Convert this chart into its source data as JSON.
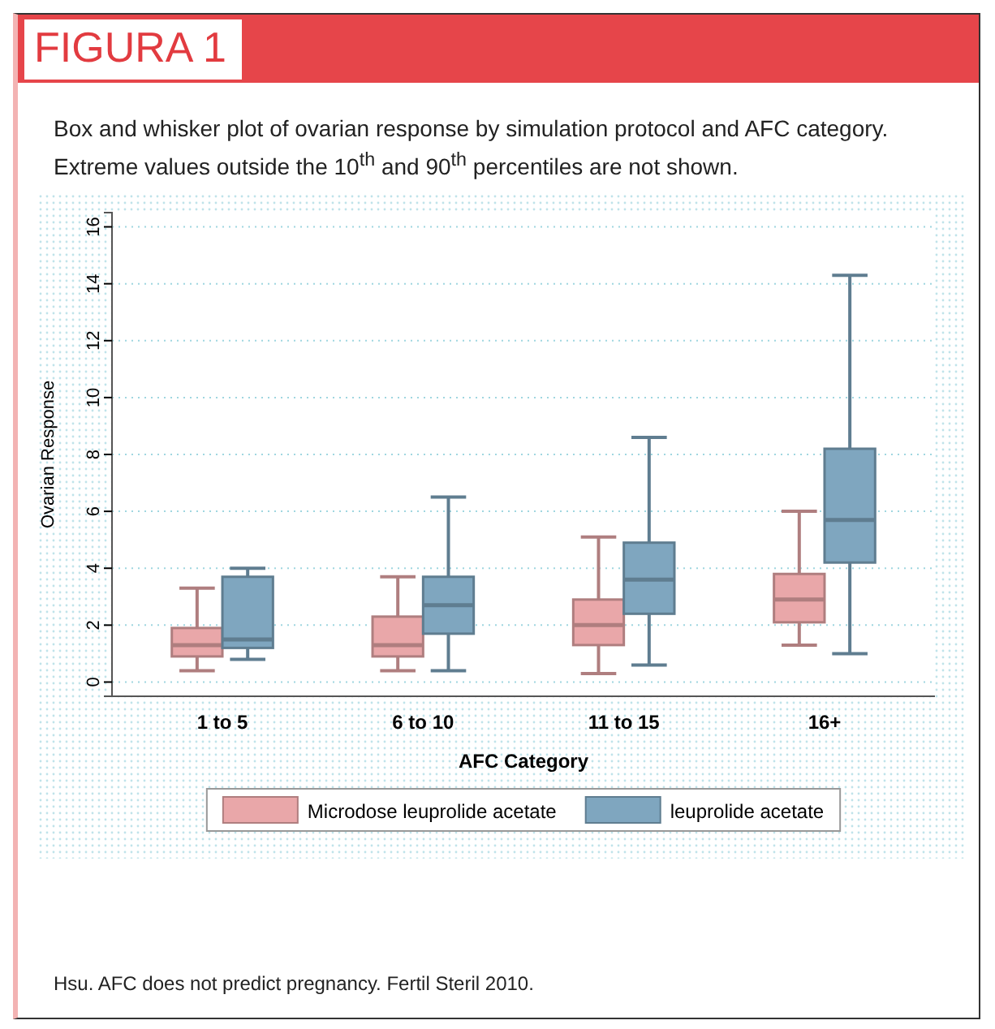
{
  "chart_data": {
    "type": "box",
    "title": "FIGURA 1",
    "subtitle": "Box and whisker plot of ovarian response by simulation protocol and AFC category. Extreme values outside the 10$^{th}$ and 90$^{th}$ percentiles are not shown.",
    "xlabel": "AFC Category",
    "ylabel": "Ovarian Response",
    "categories": [
      "1 to 5",
      "6 to 10",
      "11 to 15",
      "16+"
    ],
    "ylim": [
      -0.5,
      16.5
    ],
    "yticks": [
      0,
      2,
      4,
      6,
      8,
      10,
      12,
      14,
      16
    ],
    "grid": "y",
    "legend": "bottom",
    "annotations": [
      "Hsu. AFC does not predict pregnancy. Fertil Steril 2010."
    ],
    "series": [
      {
        "name": "Microdose leuprolide acetate",
        "color": "#e9a7a9",
        "boxes": [
          {
            "low": 0.4,
            "q1": 0.9,
            "median": 1.3,
            "q3": 1.9,
            "high": 3.3
          },
          {
            "low": 0.4,
            "q1": 0.9,
            "median": 1.3,
            "q3": 2.3,
            "high": 3.7
          },
          {
            "low": 0.3,
            "q1": 1.3,
            "median": 2.0,
            "q3": 2.9,
            "high": 5.1
          },
          {
            "low": 1.3,
            "q1": 2.1,
            "median": 2.9,
            "q3": 3.8,
            "high": 6.0
          }
        ]
      },
      {
        "name": "leuprolide acetate",
        "color": "#7fa6bf",
        "boxes": [
          {
            "low": 0.8,
            "q1": 1.2,
            "median": 1.5,
            "q3": 3.7,
            "high": 4.0
          },
          {
            "low": 0.4,
            "q1": 1.7,
            "median": 2.7,
            "q3": 3.7,
            "high": 6.5
          },
          {
            "low": 0.6,
            "q1": 2.4,
            "median": 3.6,
            "q3": 4.9,
            "high": 8.6
          },
          {
            "low": 1.0,
            "q1": 4.2,
            "median": 5.7,
            "q3": 8.2,
            "high": 14.3
          }
        ]
      }
    ]
  }
}
